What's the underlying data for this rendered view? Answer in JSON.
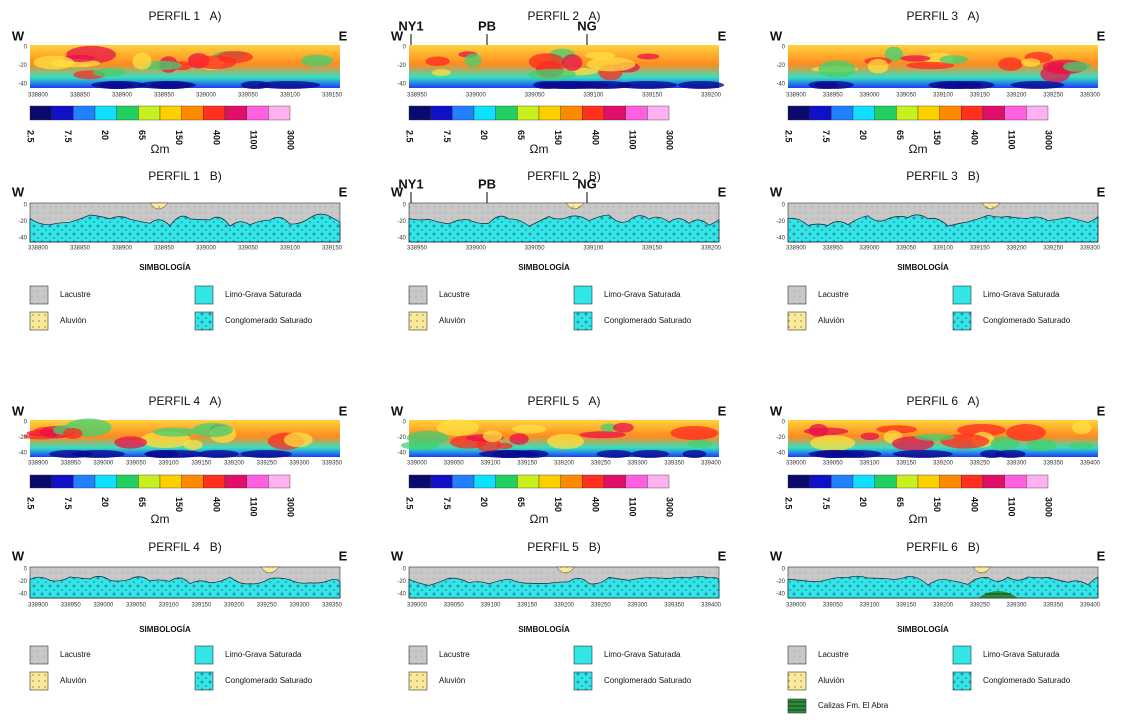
{
  "unit": "Ωm",
  "scale": [
    "2.5",
    "7.5",
    "20",
    "65",
    "150",
    "400",
    "1100",
    "3000"
  ],
  "legend_title": "SIMBOLOGÍA",
  "legend": [
    "Lacustre",
    "Limo-Grava Saturada",
    "Aluvión",
    "Conglomerado Saturado"
  ],
  "profiles": [
    {
      "a": {
        "title": "PERFIL 1   A)",
        "left": "W",
        "right": "E",
        "yticks": [
          "0",
          "-20",
          "-40"
        ],
        "xticks": [
          "338800",
          "338850",
          "338900",
          "338950",
          "339000",
          "339050",
          "339100",
          "339150"
        ]
      },
      "b": {
        "title": "PERFIL 1   B)",
        "left": "W",
        "right": "E",
        "yticks": [
          "0",
          "-20",
          "-40"
        ],
        "xticks": [
          "338800",
          "338850",
          "338900",
          "338950",
          "339000",
          "339050",
          "339100",
          "339150"
        ]
      }
    },
    {
      "a": {
        "title": "PERFIL 2   A)",
        "left": "W",
        "right": "E",
        "markers": [
          "NY1",
          "PB",
          "NG"
        ],
        "yticks": [
          "0",
          "-20",
          "-40"
        ],
        "xticks": [
          "338950",
          "339000",
          "339050",
          "339100",
          "339150",
          "339200"
        ]
      },
      "b": {
        "title": "PERFIL 2   B)",
        "left": "W",
        "right": "E",
        "markers": [
          "NY1",
          "PB",
          "NG"
        ],
        "yticks": [
          "0",
          "-20",
          "-40"
        ],
        "xticks": [
          "338950",
          "339000",
          "339050",
          "339100",
          "339150",
          "339200"
        ]
      }
    },
    {
      "a": {
        "title": "PERFIL 3   A)",
        "left": "W",
        "right": "E",
        "yticks": [
          "0",
          "-20",
          "-40"
        ],
        "xticks": [
          "338900",
          "338950",
          "339000",
          "339050",
          "339100",
          "339150",
          "339200",
          "339250",
          "339300"
        ]
      },
      "b": {
        "title": "PERFIL 3   B)",
        "left": "W",
        "right": "E",
        "yticks": [
          "0",
          "-20",
          "-40"
        ],
        "xticks": [
          "338900",
          "338950",
          "339000",
          "339050",
          "339100",
          "339150",
          "339200",
          "339250",
          "339300"
        ]
      }
    },
    {
      "a": {
        "title": "PERFIL 4   A)",
        "left": "W",
        "right": "E",
        "yticks": [
          "0",
          "-20",
          "-40"
        ],
        "xticks": [
          "338900",
          "338950",
          "339000",
          "339050",
          "339100",
          "339150",
          "339200",
          "339250",
          "339300",
          "339350"
        ]
      },
      "b": {
        "title": "PERFIL 4   B)",
        "left": "W",
        "right": "E",
        "yticks": [
          "0",
          "-20",
          "-40"
        ],
        "xticks": [
          "338900",
          "338950",
          "339000",
          "339050",
          "339100",
          "339150",
          "339200",
          "339250",
          "339300",
          "339350"
        ]
      }
    },
    {
      "a": {
        "title": "PERFIL 5   A)",
        "left": "W",
        "right": "E",
        "yticks": [
          "0",
          "-20",
          "-40"
        ],
        "xticks": [
          "339000",
          "339050",
          "339100",
          "339150",
          "339200",
          "339250",
          "339300",
          "339350",
          "339400"
        ]
      },
      "b": {
        "title": "PERFIL 5   B)",
        "left": "W",
        "right": "E",
        "yticks": [
          "0",
          "-20",
          "-40"
        ],
        "xticks": [
          "339000",
          "339050",
          "339100",
          "339150",
          "339200",
          "339250",
          "339300",
          "339350",
          "339400"
        ]
      }
    },
    {
      "a": {
        "title": "PERFIL 6   A)",
        "left": "W",
        "right": "E",
        "yticks": [
          "0",
          "-20",
          "-40"
        ],
        "xticks": [
          "339000",
          "339050",
          "339100",
          "339150",
          "339200",
          "339250",
          "339300",
          "339350",
          "339400"
        ]
      },
      "b": {
        "title": "PERFIL 6   B)",
        "left": "W",
        "right": "E",
        "yticks": [
          "0",
          "-20",
          "-40"
        ],
        "xticks": [
          "339000",
          "339050",
          "339100",
          "339150",
          "339200",
          "339250",
          "339300",
          "339350",
          "339400"
        ]
      },
      "extra_legend": "Calizas Fm. El Abra"
    }
  ]
}
